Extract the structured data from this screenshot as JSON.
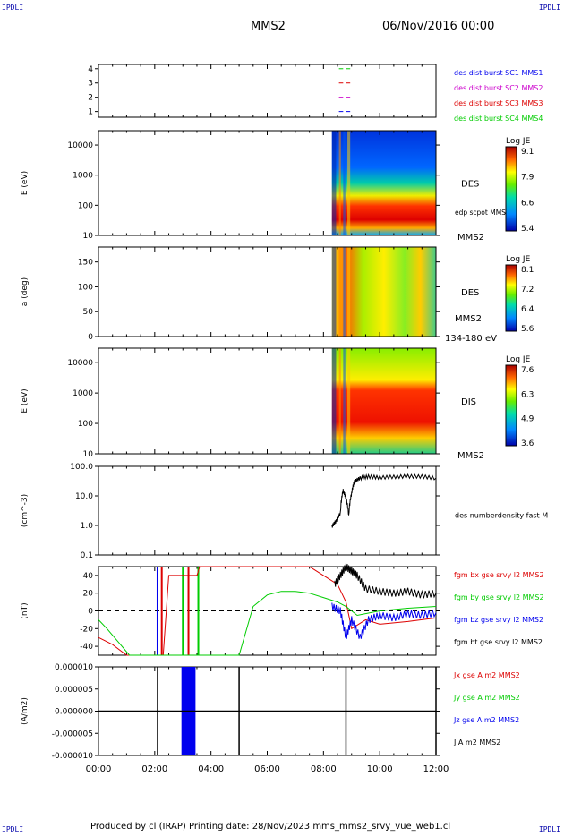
{
  "corners": {
    "tl": "IPDLI",
    "tr": "IPDLI",
    "bl": "IPDLI",
    "br": "IPDLI"
  },
  "header": {
    "spacecraft": "MMS2",
    "date": "06/Nov/2016 00:00"
  },
  "footer": "Produced by cl (IRAP)   Printing date: 28/Nov/2023   mms_mms2_srvy_vue_web1.cl",
  "colors": {
    "red": "#dd0000",
    "green": "#00cc00",
    "blue": "#0000ee",
    "magenta": "#cc00cc",
    "black": "#000000"
  },
  "chart_data": [
    {
      "type": "line",
      "name": "burst-availability",
      "yticks": [
        "1",
        "2",
        "3",
        "4"
      ],
      "ylim": [
        0.6,
        4.3
      ],
      "legend": [
        {
          "text": "des dist burst SC1 MMS1",
          "color": "#0000ee"
        },
        {
          "text": "des dist burst SC2 MMS2",
          "color": "#cc00cc"
        },
        {
          "text": "des dist burst SC3 MMS3",
          "color": "#dd0000"
        },
        {
          "text": "des dist burst SC4 MMS4",
          "color": "#00cc00"
        }
      ],
      "series": [
        {
          "level": 1,
          "color": "#0000ee",
          "segments": [
            [
              8.55,
              8.7
            ],
            [
              8.8,
              8.95
            ]
          ]
        },
        {
          "level": 2,
          "color": "#cc00cc",
          "segments": [
            [
              8.55,
              8.7
            ],
            [
              8.8,
              8.95
            ]
          ]
        },
        {
          "level": 3,
          "color": "#dd0000",
          "segments": [
            [
              8.55,
              8.7
            ],
            [
              8.8,
              8.95
            ]
          ]
        },
        {
          "level": 4,
          "color": "#00cc00",
          "segments": [
            [
              8.55,
              8.7
            ],
            [
              8.8,
              8.95
            ]
          ]
        }
      ]
    },
    {
      "type": "heatmap",
      "name": "des-energy-spectrogram",
      "ylabel": "E (eV)",
      "yscale": "log",
      "yticks": [
        "10",
        "100",
        "1000",
        "10000"
      ],
      "ylim": [
        10,
        30000
      ],
      "label": "DES",
      "sublabel": "edp scpot MMS2",
      "bottom_label": "MMS2",
      "colorbar": {
        "title": "Log JE",
        "ticks": [
          "9.1",
          "7.9",
          "6.6",
          "5.4"
        ]
      },
      "data_start_hour": 8.3
    },
    {
      "type": "heatmap",
      "name": "des-pitch-angle",
      "ylabel": "a (deg)",
      "yticks": [
        "0",
        "50",
        "100",
        "150"
      ],
      "ylim": [
        0,
        180
      ],
      "label": "DES",
      "sublabel": "MMS2",
      "bottom_label": "134-180 eV",
      "colorbar": {
        "title": "Log JE",
        "ticks": [
          "8.1",
          "7.2",
          "6.4",
          "5.6"
        ]
      },
      "data_start_hour": 8.3
    },
    {
      "type": "heatmap",
      "name": "dis-energy-spectrogram",
      "ylabel": "E (eV)",
      "yscale": "log",
      "yticks": [
        "10",
        "100",
        "1000",
        "10000"
      ],
      "ylim": [
        10,
        30000
      ],
      "label": "DIS",
      "bottom_label": "MMS2",
      "colorbar": {
        "title": "Log JE",
        "ticks": [
          "7.6",
          "6.3",
          "4.9",
          "3.6"
        ]
      },
      "data_start_hour": 8.3
    },
    {
      "type": "line",
      "name": "density",
      "ylabel": "(cm^-3)",
      "yscale": "log",
      "yticks": [
        "0.1",
        "1.0",
        "10.0",
        "100.0"
      ],
      "ylim": [
        0.1,
        100
      ],
      "legend": [
        {
          "text": "des numberdensity fast M",
          "color": "#000000"
        }
      ],
      "x": [
        8.3,
        8.45,
        8.6,
        8.7,
        8.8,
        8.9,
        9.0,
        9.1,
        9.3,
        9.6,
        10.0,
        10.5,
        11.0,
        11.5,
        12.0
      ],
      "y": [
        0.9,
        1.4,
        2.5,
        15,
        8,
        2.0,
        12,
        30,
        40,
        45,
        42,
        44,
        46,
        45,
        40
      ]
    },
    {
      "type": "line",
      "name": "magnetic-field",
      "ylabel": "(nT)",
      "yticks": [
        "-40",
        "-20",
        "0",
        "20",
        "40"
      ],
      "ylim": [
        -50,
        50
      ],
      "legend": [
        {
          "text": "fgm bx gse srvy l2 MMS2",
          "color": "#dd0000"
        },
        {
          "text": "fgm by gse srvy l2 MMS2",
          "color": "#00cc00"
        },
        {
          "text": "fgm bz gse srvy l2 MMS2",
          "color": "#0000ee"
        },
        {
          "text": "fgm bt gse srvy l2 MMS2",
          "color": "#000000"
        }
      ],
      "series": [
        {
          "name": "bx",
          "color": "#dd0000",
          "x": [
            0,
            0.5,
            1.0,
            2.3,
            2.5,
            3.5,
            3.6,
            7.5,
            8.0,
            8.5,
            8.8,
            9.0,
            9.5,
            10.0,
            11.0,
            12.0
          ],
          "y": [
            -30,
            -38,
            -50,
            -50,
            40,
            40,
            50,
            50,
            40,
            30,
            10,
            -20,
            -10,
            -15,
            -12,
            -8
          ]
        },
        {
          "name": "by",
          "color": "#00cc00",
          "x": [
            0,
            0.3,
            0.7,
            1.1,
            5.0,
            5.5,
            6.0,
            6.5,
            7.0,
            7.5,
            8.0,
            8.5,
            8.8,
            9.2,
            10.0,
            11.0,
            12.0
          ],
          "y": [
            -10,
            -20,
            -35,
            -50,
            -50,
            5,
            18,
            22,
            22,
            20,
            15,
            10,
            5,
            -5,
            0,
            3,
            5
          ]
        },
        {
          "name": "bz",
          "color": "#0000ee",
          "x": [
            8.3,
            8.6,
            8.8,
            9.0,
            9.3,
            9.6,
            10.0,
            10.5,
            11.0,
            11.5,
            12.0
          ],
          "y": [
            5,
            0,
            -30,
            -10,
            -30,
            -10,
            -5,
            -8,
            -3,
            -5,
            -2
          ]
        },
        {
          "name": "bt",
          "color": "#000000",
          "x": [
            8.4,
            8.6,
            8.8,
            9.0,
            9.2,
            9.5,
            10.0,
            10.5,
            11.0,
            11.5,
            12.0
          ],
          "y": [
            30,
            40,
            50,
            45,
            40,
            25,
            22,
            20,
            22,
            18,
            20
          ]
        }
      ],
      "spikes": [
        {
          "x": 2.1,
          "color": "#0000ee"
        },
        {
          "x": 2.25,
          "color": "#dd0000"
        },
        {
          "x": 3.0,
          "color": "#00cc00"
        },
        {
          "x": 3.2,
          "color": "#dd0000"
        },
        {
          "x": 3.55,
          "color": "#00cc00"
        }
      ]
    },
    {
      "type": "line",
      "name": "current-density",
      "ylabel": "(A/m2)",
      "yticks": [
        "-0.000010",
        "-0.000005",
        "0.000000",
        "0.000005",
        "0.000010"
      ],
      "ylim": [
        -1e-05,
        1e-05
      ],
      "legend": [
        {
          "text": "Jx gse A m2 MMS2",
          "color": "#dd0000"
        },
        {
          "text": "Jy gse A m2 MMS2",
          "color": "#00cc00"
        },
        {
          "text": "Jz gse A m2 MMS2",
          "color": "#0000ee"
        },
        {
          "text": "J A m2 MMS2",
          "color": "#000000"
        }
      ],
      "blocks": [
        {
          "x0": 2.95,
          "x1": 3.45,
          "color": "#0000ee"
        }
      ],
      "spikes": [
        {
          "x": 2.1,
          "color": "#000000"
        },
        {
          "x": 5.0,
          "color": "#000000"
        },
        {
          "x": 8.8,
          "color": "#000000"
        },
        {
          "x": 12.0,
          "color": "#000000"
        }
      ],
      "xticks": [
        "00:00",
        "02:00",
        "04:00",
        "06:00",
        "08:00",
        "10:00",
        "12:00"
      ],
      "xlim": [
        0,
        12
      ]
    }
  ]
}
